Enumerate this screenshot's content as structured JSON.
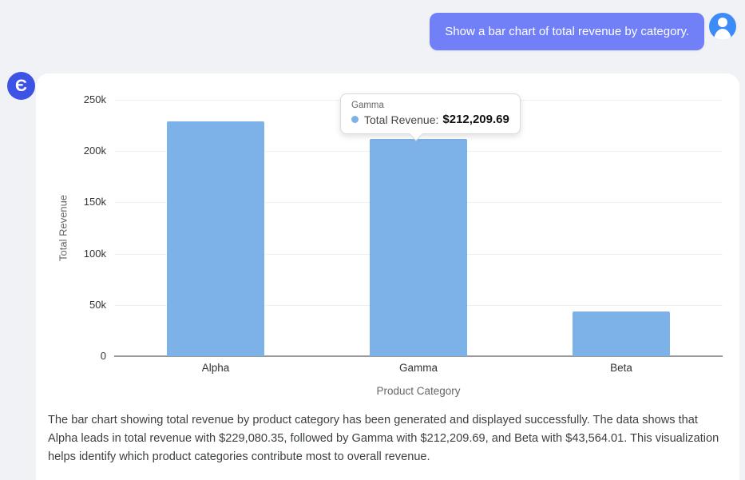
{
  "chat": {
    "user_message": "Show a bar chart of total revenue by category.",
    "user_avatar_icon": "person-icon",
    "assistant_avatar_glyph": "Є"
  },
  "colors": {
    "bubble": "#7280f7",
    "user_avatar": "#3d8bf8",
    "assistant_avatar": "#3d53e5",
    "bar": "#7db2e8",
    "page_bg": "#f1f2f6",
    "card_bg": "#ffffff"
  },
  "tooltip": {
    "category": "Gamma",
    "series_label": "Total Revenue:",
    "value": "$212,209.69"
  },
  "chart_data": {
    "type": "bar",
    "title": "",
    "categories": [
      "Alpha",
      "Gamma",
      "Beta"
    ],
    "values": [
      229080.35,
      212209.69,
      43564.01
    ],
    "series_name": "Total Revenue",
    "xlabel": "Product Category",
    "ylabel": "Total Revenue",
    "ylim": [
      0,
      250000
    ],
    "yticks": [
      {
        "value": 0,
        "label": "0"
      },
      {
        "value": 50000,
        "label": "50k"
      },
      {
        "value": 100000,
        "label": "100k"
      },
      {
        "value": 150000,
        "label": "150k"
      },
      {
        "value": 200000,
        "label": "200k"
      },
      {
        "value": 250000,
        "label": "250k"
      }
    ],
    "grid": true,
    "legend": false,
    "bar_color": "#7db2e8"
  },
  "assistant": {
    "summary": "The bar chart showing total revenue by product category has been generated and displayed successfully. The data shows that Alpha leads in total revenue with $229,080.35, followed by Gamma with $212,209.69, and Beta with $43,564.01. This visualization helps identify which product categories contribute most to overall revenue."
  }
}
